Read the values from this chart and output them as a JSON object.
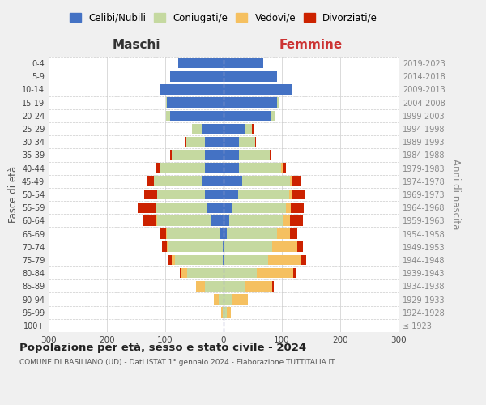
{
  "age_groups": [
    "100+",
    "95-99",
    "90-94",
    "85-89",
    "80-84",
    "75-79",
    "70-74",
    "65-69",
    "60-64",
    "55-59",
    "50-54",
    "45-49",
    "40-44",
    "35-39",
    "30-34",
    "25-29",
    "20-24",
    "15-19",
    "10-14",
    "5-9",
    "0-4"
  ],
  "birth_years": [
    "≤ 1923",
    "1924-1928",
    "1929-1933",
    "1934-1938",
    "1939-1943",
    "1944-1948",
    "1949-1953",
    "1954-1958",
    "1959-1963",
    "1964-1968",
    "1969-1973",
    "1974-1978",
    "1979-1983",
    "1984-1988",
    "1989-1993",
    "1994-1998",
    "1999-2003",
    "2004-2008",
    "2009-2013",
    "2014-2018",
    "2019-2023"
  ],
  "male_celibi": [
    0,
    0,
    0,
    0,
    0,
    2,
    2,
    5,
    22,
    28,
    32,
    38,
    32,
    32,
    32,
    38,
    92,
    97,
    108,
    92,
    78
  ],
  "male_coniugati": [
    0,
    2,
    8,
    32,
    62,
    82,
    92,
    92,
    92,
    87,
    82,
    82,
    77,
    57,
    32,
    16,
    6,
    2,
    0,
    0,
    0
  ],
  "male_vedovi": [
    0,
    2,
    8,
    15,
    10,
    5,
    3,
    2,
    2,
    0,
    0,
    0,
    0,
    0,
    0,
    0,
    0,
    0,
    0,
    0,
    0
  ],
  "male_divorziati": [
    0,
    0,
    0,
    0,
    3,
    5,
    8,
    10,
    22,
    32,
    22,
    12,
    6,
    2,
    2,
    0,
    0,
    0,
    0,
    0,
    0
  ],
  "female_nubili": [
    0,
    0,
    0,
    0,
    0,
    0,
    2,
    5,
    10,
    15,
    25,
    32,
    27,
    27,
    27,
    37,
    82,
    92,
    118,
    92,
    68
  ],
  "female_coniugate": [
    0,
    5,
    15,
    37,
    57,
    77,
    82,
    87,
    92,
    92,
    87,
    82,
    72,
    52,
    27,
    12,
    6,
    2,
    0,
    0,
    0
  ],
  "female_vedove": [
    2,
    8,
    27,
    47,
    62,
    57,
    42,
    22,
    12,
    8,
    6,
    2,
    2,
    0,
    0,
    0,
    0,
    0,
    0,
    0,
    0
  ],
  "female_divorziate": [
    0,
    0,
    0,
    2,
    5,
    8,
    10,
    12,
    22,
    22,
    22,
    18,
    6,
    2,
    2,
    2,
    0,
    0,
    0,
    0,
    0
  ],
  "col_celibi": "#4472c4",
  "col_coniugati": "#c5d9a0",
  "col_vedovi": "#f5c060",
  "col_divorziati": "#cc2200",
  "title": "Popolazione per età, sesso e stato civile - 2024",
  "subtitle": "COMUNE DI BASILIANO (UD) - Dati ISTAT 1° gennaio 2024 - Elaborazione TUTTITALIA.IT",
  "legend_labels": [
    "Celibi/Nubili",
    "Coniugati/e",
    "Vedovi/e",
    "Divorziati/e"
  ],
  "xlabel_left": "Maschi",
  "xlabel_right": "Femmine",
  "ylabel_left": "Fasce di età",
  "ylabel_right": "Anni di nascita",
  "xlim": 300,
  "bg_color": "#f0f0f0",
  "plot_bg": "#ffffff"
}
